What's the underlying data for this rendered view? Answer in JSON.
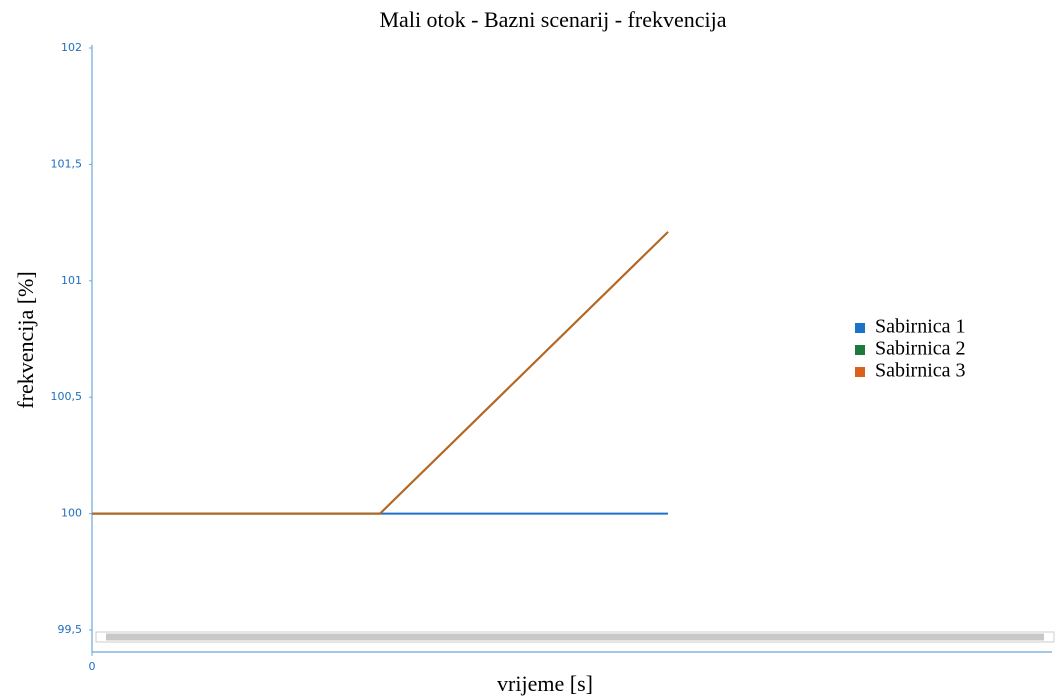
{
  "chart_data": {
    "type": "line",
    "title": "Mali otok - Bazni scenarij - frekvencija",
    "xlabel": "vrijeme [s]",
    "ylabel": "frekvencija [%]",
    "x": [
      0,
      3,
      6
    ],
    "xlim": [
      0,
      10
    ],
    "xticks": [
      0
    ],
    "ylim": [
      99.5,
      102
    ],
    "yticks": [
      {
        "value": 99.5,
        "label": "99,5"
      },
      100,
      {
        "value": 100.5,
        "label": "100,5"
      },
      101,
      {
        "value": 101.5,
        "label": "101,5"
      },
      102
    ],
    "series": [
      {
        "name": "Sabirnica 1",
        "color": "#1a73c9",
        "values": [
          100,
          100,
          100
        ]
      },
      {
        "name": "Sabirnica 2",
        "color": "#1b7a3c",
        "values": [
          100,
          100,
          101.21
        ]
      },
      {
        "name": "Sabirnica 3",
        "color": "#d8621c",
        "values": [
          100,
          100,
          101.21
        ]
      }
    ],
    "legend": "right"
  }
}
